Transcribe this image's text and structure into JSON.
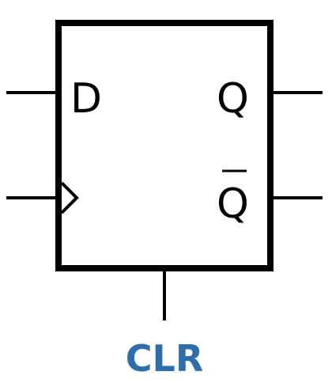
{
  "component": {
    "pins": {
      "d_label": "D",
      "q_label": "Q",
      "qbar_label": "Q",
      "clr_label": "CLR"
    },
    "colors": {
      "stroke": "#000000",
      "clr_label": "#2e6eaa",
      "background": "#ffffff"
    }
  }
}
